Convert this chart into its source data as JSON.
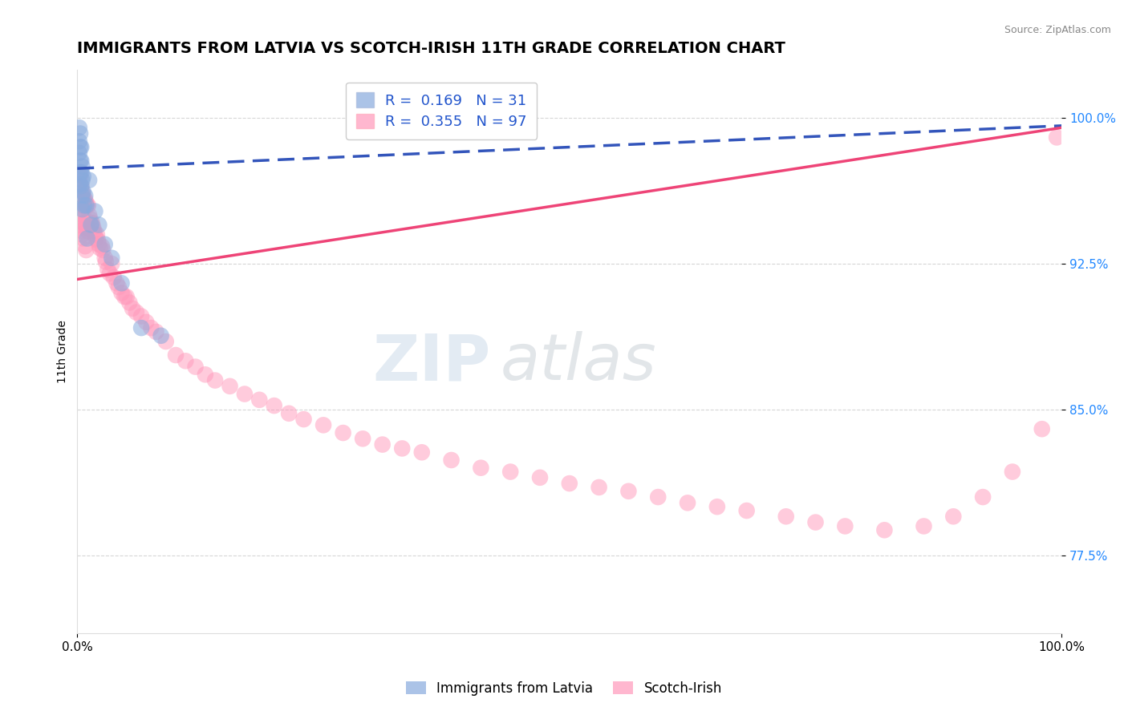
{
  "title": "IMMIGRANTS FROM LATVIA VS SCOTCH-IRISH 11TH GRADE CORRELATION CHART",
  "source_text": "Source: ZipAtlas.com",
  "ylabel": "11th Grade",
  "xmin": 0.0,
  "xmax": 1.0,
  "ymin": 0.735,
  "ymax": 1.025,
  "yticks": [
    0.775,
    0.85,
    0.925,
    1.0
  ],
  "ytick_labels": [
    "77.5%",
    "85.0%",
    "92.5%",
    "100.0%"
  ],
  "xtick_labels": [
    "0.0%",
    "100.0%"
  ],
  "xticks": [
    0.0,
    1.0
  ],
  "legend_R1": "R =  0.169",
  "legend_N1": "N = 31",
  "legend_R2": "R =  0.355",
  "legend_N2": "N = 97",
  "blue_color": "#88AADD",
  "pink_color": "#FF99BB",
  "trend_blue": "#3355BB",
  "trend_pink": "#EE4477",
  "watermark_zip": "ZIP",
  "watermark_atlas": "atlas",
  "title_fontsize": 14,
  "axis_label_fontsize": 10,
  "tick_fontsize": 11,
  "legend_fontsize": 13,
  "blue_scatter_x": [
    0.002,
    0.002,
    0.002,
    0.003,
    0.003,
    0.003,
    0.003,
    0.003,
    0.004,
    0.004,
    0.004,
    0.004,
    0.005,
    0.005,
    0.005,
    0.005,
    0.006,
    0.006,
    0.007,
    0.008,
    0.009,
    0.01,
    0.012,
    0.014,
    0.018,
    0.022,
    0.028,
    0.035,
    0.045,
    0.065,
    0.085
  ],
  "blue_scatter_y": [
    0.995,
    0.988,
    0.982,
    0.992,
    0.985,
    0.978,
    0.972,
    0.966,
    0.985,
    0.978,
    0.972,
    0.965,
    0.975,
    0.968,
    0.96,
    0.953,
    0.97,
    0.962,
    0.955,
    0.96,
    0.955,
    0.938,
    0.968,
    0.945,
    0.952,
    0.945,
    0.935,
    0.928,
    0.915,
    0.892,
    0.888
  ],
  "pink_scatter_x": [
    0.002,
    0.002,
    0.003,
    0.003,
    0.003,
    0.004,
    0.004,
    0.004,
    0.005,
    0.005,
    0.005,
    0.006,
    0.006,
    0.006,
    0.007,
    0.007,
    0.008,
    0.008,
    0.008,
    0.009,
    0.009,
    0.009,
    0.01,
    0.01,
    0.011,
    0.011,
    0.012,
    0.013,
    0.014,
    0.015,
    0.016,
    0.017,
    0.018,
    0.019,
    0.02,
    0.021,
    0.022,
    0.023,
    0.025,
    0.026,
    0.028,
    0.029,
    0.031,
    0.033,
    0.035,
    0.037,
    0.04,
    0.042,
    0.045,
    0.048,
    0.05,
    0.053,
    0.056,
    0.06,
    0.065,
    0.07,
    0.075,
    0.08,
    0.09,
    0.1,
    0.11,
    0.12,
    0.13,
    0.14,
    0.155,
    0.17,
    0.185,
    0.2,
    0.215,
    0.23,
    0.25,
    0.27,
    0.29,
    0.31,
    0.33,
    0.35,
    0.38,
    0.41,
    0.44,
    0.47,
    0.5,
    0.53,
    0.56,
    0.59,
    0.62,
    0.65,
    0.68,
    0.72,
    0.75,
    0.78,
    0.82,
    0.86,
    0.89,
    0.92,
    0.95,
    0.98,
    0.995
  ],
  "pink_scatter_y": [
    0.965,
    0.95,
    0.97,
    0.958,
    0.945,
    0.965,
    0.955,
    0.942,
    0.962,
    0.952,
    0.94,
    0.96,
    0.95,
    0.938,
    0.958,
    0.946,
    0.958,
    0.946,
    0.934,
    0.956,
    0.944,
    0.932,
    0.955,
    0.942,
    0.955,
    0.942,
    0.95,
    0.948,
    0.946,
    0.946,
    0.944,
    0.942,
    0.94,
    0.938,
    0.94,
    0.937,
    0.935,
    0.933,
    0.934,
    0.932,
    0.928,
    0.926,
    0.922,
    0.92,
    0.925,
    0.918,
    0.915,
    0.913,
    0.91,
    0.908,
    0.908,
    0.905,
    0.902,
    0.9,
    0.898,
    0.895,
    0.892,
    0.89,
    0.885,
    0.878,
    0.875,
    0.872,
    0.868,
    0.865,
    0.862,
    0.858,
    0.855,
    0.852,
    0.848,
    0.845,
    0.842,
    0.838,
    0.835,
    0.832,
    0.83,
    0.828,
    0.824,
    0.82,
    0.818,
    0.815,
    0.812,
    0.81,
    0.808,
    0.805,
    0.802,
    0.8,
    0.798,
    0.795,
    0.792,
    0.79,
    0.788,
    0.79,
    0.795,
    0.805,
    0.818,
    0.84,
    0.99
  ]
}
